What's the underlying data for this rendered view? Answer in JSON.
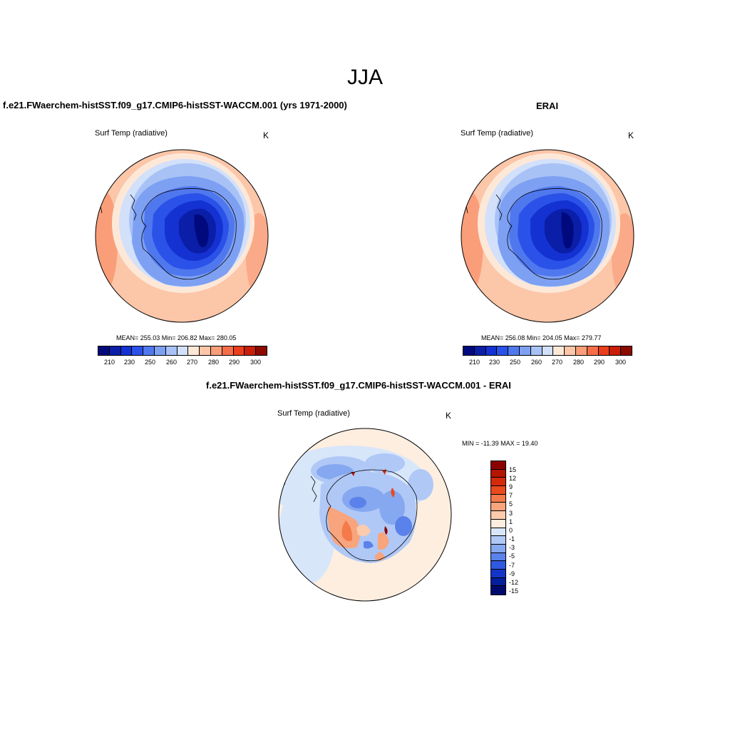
{
  "title": "JJA",
  "panels": [
    {
      "title": "f.e21.FWaerchem-histSST.f09_g17.CMIP6-histSST-WACCM.001 (yrs 1971-2000)",
      "variable": "Surf Temp (radiative)",
      "units": "K",
      "stats": "MEAN= 255.03  Min= 206.82  Max= 280.05",
      "colorbar_ticks": [
        "210",
        "230",
        "250",
        "260",
        "270",
        "280",
        "290",
        "300"
      ]
    },
    {
      "title": "ERAI",
      "variable": "Surf Temp (radiative)",
      "units": "K",
      "stats": "MEAN= 256.08  Min= 204.05  Max= 279.77",
      "colorbar_ticks": [
        "210",
        "230",
        "250",
        "260",
        "270",
        "280",
        "290",
        "300"
      ]
    },
    {
      "title": "f.e21.FWaerchem-histSST.f09_g17.CMIP6-histSST-WACCM.001 - ERAI",
      "variable": "Surf Temp (radiative)",
      "units": "K",
      "stats": "MIN = -11.39 MAX =  19.40",
      "colorbar_ticks": [
        "15",
        "12",
        "9",
        "7",
        "5",
        "3",
        "1",
        "0",
        "-1",
        "-3",
        "-5",
        "-7",
        "-9",
        "-12",
        "-15"
      ]
    }
  ],
  "colors": {
    "abs_scale": [
      "#000a7d",
      "#0a1ea8",
      "#1432d2",
      "#2a52e8",
      "#5078ee",
      "#7ea0f2",
      "#a8c2f6",
      "#d2e0fa",
      "#fde8d8",
      "#fcc6a8",
      "#fa9e7a",
      "#f56e48",
      "#ea3e1c",
      "#c81e0a",
      "#8c0a00"
    ],
    "diff_scale": [
      "#8c0000",
      "#b41400",
      "#d22a0a",
      "#ea4a1e",
      "#f47a4a",
      "#f8a47c",
      "#fbcbac",
      "#fdeee0",
      "#d8e6fa",
      "#b0c8f6",
      "#86a8f0",
      "#5a82ea",
      "#3058e0",
      "#1434c8",
      "#041e9c",
      "#000a6e"
    ]
  }
}
